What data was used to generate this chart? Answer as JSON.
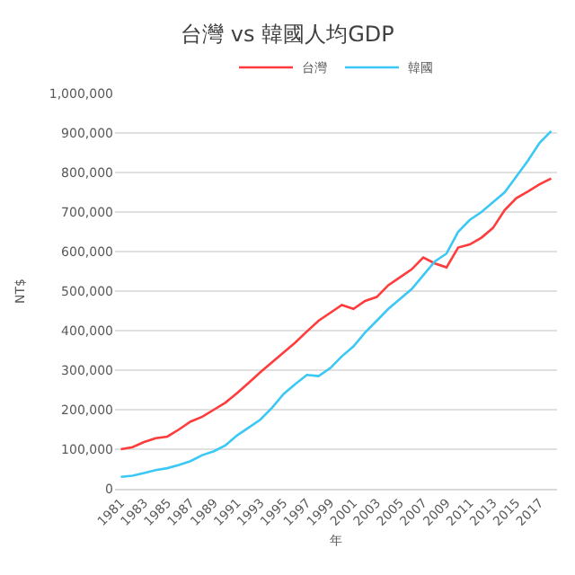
{
  "chart_data": {
    "type": "line",
    "title": "台灣 vs 韓國人均GDP",
    "xlabel": "年",
    "ylabel": "NT$",
    "categories": [
      "1981",
      null,
      "1983",
      null,
      "1985",
      null,
      "1987",
      null,
      "1989",
      null,
      "1991",
      null,
      "1993",
      null,
      "1995",
      null,
      "1997",
      null,
      "1999",
      null,
      "2001",
      null,
      "2003",
      null,
      "2005",
      null,
      "2007",
      null,
      "2009",
      null,
      "2011",
      null,
      "2013",
      null,
      "2015",
      null,
      "2017",
      null
    ],
    "series": [
      {
        "name": "台灣",
        "color": "#ff3b3b",
        "values": [
          100000,
          105000,
          118000,
          128000,
          132000,
          150000,
          170000,
          182000,
          200000,
          218000,
          242000,
          268000,
          295000,
          320000,
          345000,
          370000,
          398000,
          425000,
          445000,
          465000,
          455000,
          475000,
          485000,
          515000,
          535000,
          555000,
          585000,
          570000,
          560000,
          610000,
          618000,
          635000,
          660000,
          705000,
          735000,
          752000,
          770000,
          785000
        ]
      },
      {
        "name": "韓國",
        "color": "#3cc8f5",
        "values": [
          30000,
          33000,
          40000,
          47000,
          52000,
          60000,
          70000,
          85000,
          95000,
          110000,
          135000,
          155000,
          175000,
          205000,
          240000,
          265000,
          288000,
          285000,
          305000,
          335000,
          360000,
          395000,
          425000,
          455000,
          480000,
          505000,
          540000,
          575000,
          595000,
          650000,
          680000,
          700000,
          725000,
          750000,
          790000,
          830000,
          875000,
          905000
        ]
      }
    ],
    "ylim": [
      0,
      1000000
    ],
    "yticks": [
      0,
      {
        "value": 100000,
        "label": "100,000"
      },
      {
        "value": 200000,
        "label": "200,000"
      },
      {
        "value": 300000,
        "label": "300,000"
      },
      {
        "value": 400000,
        "label": "400,000"
      },
      {
        "value": 500000,
        "label": "500,000"
      },
      {
        "value": 600000,
        "label": "600,000"
      },
      {
        "value": 700000,
        "label": "700,000"
      },
      {
        "value": 800000,
        "label": "800,000"
      },
      {
        "value": 900000,
        "label": "900,000"
      },
      {
        "value": 1000000,
        "label": "1,000,000"
      }
    ],
    "grid": "y",
    "legend": "top",
    "marker": "none",
    "line_style": "solid"
  }
}
